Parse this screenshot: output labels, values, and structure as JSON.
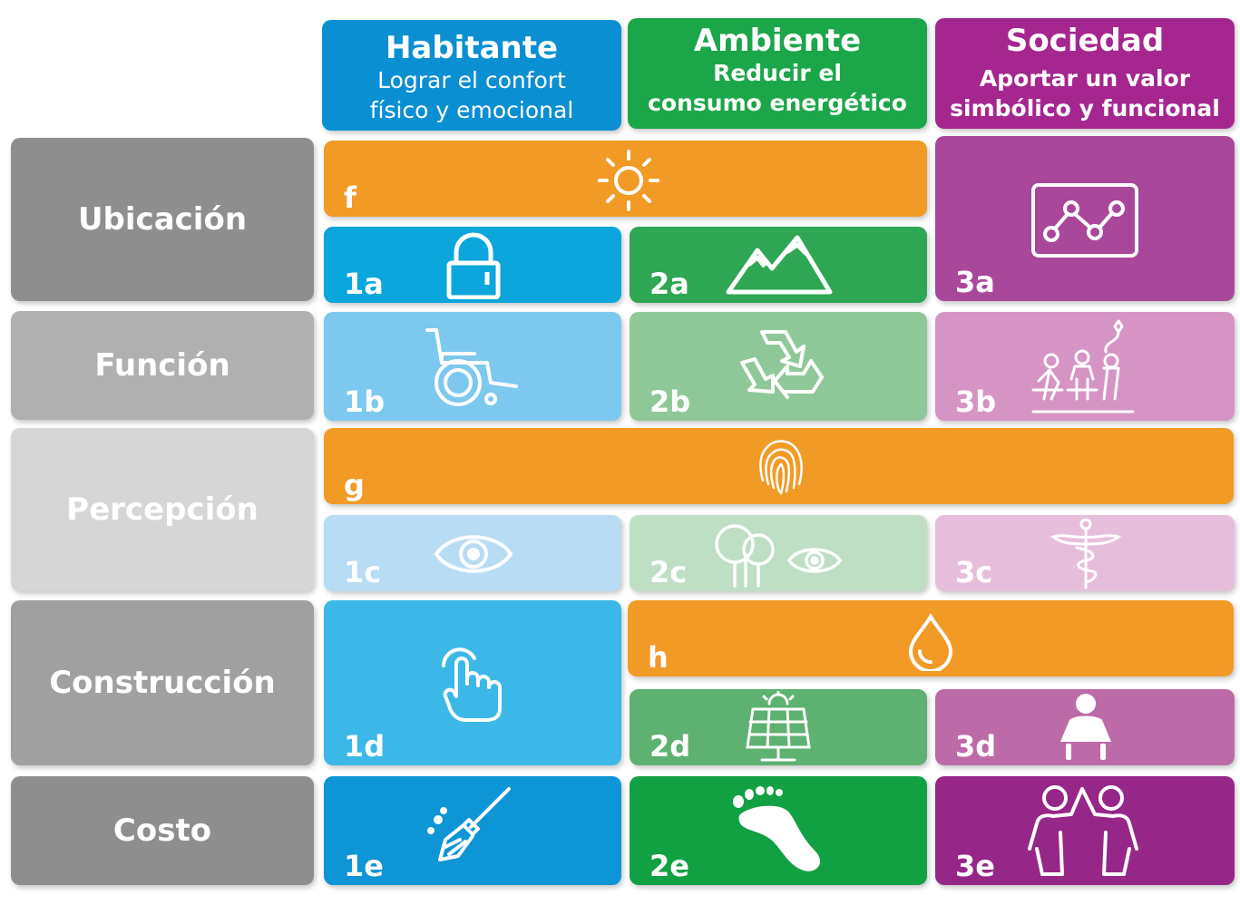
{
  "headers": [
    {
      "title": "Habitante",
      "subtitle_l1": "Lograr el confort",
      "subtitle_l2": "físico y emocional",
      "color": "#0b8fd3"
    },
    {
      "title": "Ambiente",
      "subtitle_l1": "Reducir el",
      "subtitle_l2": "consumo energético",
      "color": "#1ba64a"
    },
    {
      "title": "Sociedad",
      "subtitle_l1": "Aportar un valor",
      "subtitle_l2": "simbólico y funcional",
      "color": "#a5268f"
    }
  ],
  "rows": [
    {
      "label": "Ubicación",
      "color": "#8e8e8e"
    },
    {
      "label": "Función",
      "color": "#b0b0b0"
    },
    {
      "label": "Percepción",
      "color": "#d6d6d6"
    },
    {
      "label": "Construcción",
      "color": "#a0a0a0"
    },
    {
      "label": "Costo",
      "color": "#8e8e8e"
    }
  ],
  "cells": {
    "f": {
      "code": "f",
      "icon": "sun-icon",
      "color": "#f29a26"
    },
    "g": {
      "code": "g",
      "icon": "fingerprint-icon",
      "color": "#f29a26"
    },
    "h": {
      "code": "h",
      "icon": "water-drop-icon",
      "color": "#f29a26"
    },
    "c1a": {
      "code": "1a",
      "icon": "lock-icon",
      "color": "#0ba6dc"
    },
    "c2a": {
      "code": "2a",
      "icon": "mountains-icon",
      "color": "#2ea653"
    },
    "c3a": {
      "code": "3a",
      "icon": "network-graph-icon",
      "color": "#a9479a"
    },
    "c1b": {
      "code": "1b",
      "icon": "wheelchair-icon",
      "color": "#7cc8ef"
    },
    "c2b": {
      "code": "2b",
      "icon": "recycle-icon",
      "color": "#8fc898"
    },
    "c3b": {
      "code": "3b",
      "icon": "community-icon",
      "color": "#d594c4"
    },
    "c1c": {
      "code": "1c",
      "icon": "eye-icon",
      "color": "#b7dcf3"
    },
    "c2c": {
      "code": "2c",
      "icon": "trees-eye-icon",
      "color": "#bfdfc5"
    },
    "c3c": {
      "code": "3c",
      "icon": "caduceus-icon",
      "color": "#e6bedc"
    },
    "c1d": {
      "code": "1d",
      "icon": "touch-hand-icon",
      "color": "#3bb8e8"
    },
    "c2d": {
      "code": "2d",
      "icon": "solar-panel-icon",
      "color": "#5db171"
    },
    "c3d": {
      "code": "3d",
      "icon": "seated-person-icon",
      "color": "#bc6aa8"
    },
    "c1e": {
      "code": "1e",
      "icon": "broom-icon",
      "color": "#0d95d6"
    },
    "c2e": {
      "code": "2e",
      "icon": "footprint-icon",
      "color": "#11a042"
    },
    "c3e": {
      "code": "3e",
      "icon": "high-five-icon",
      "color": "#962687"
    }
  }
}
